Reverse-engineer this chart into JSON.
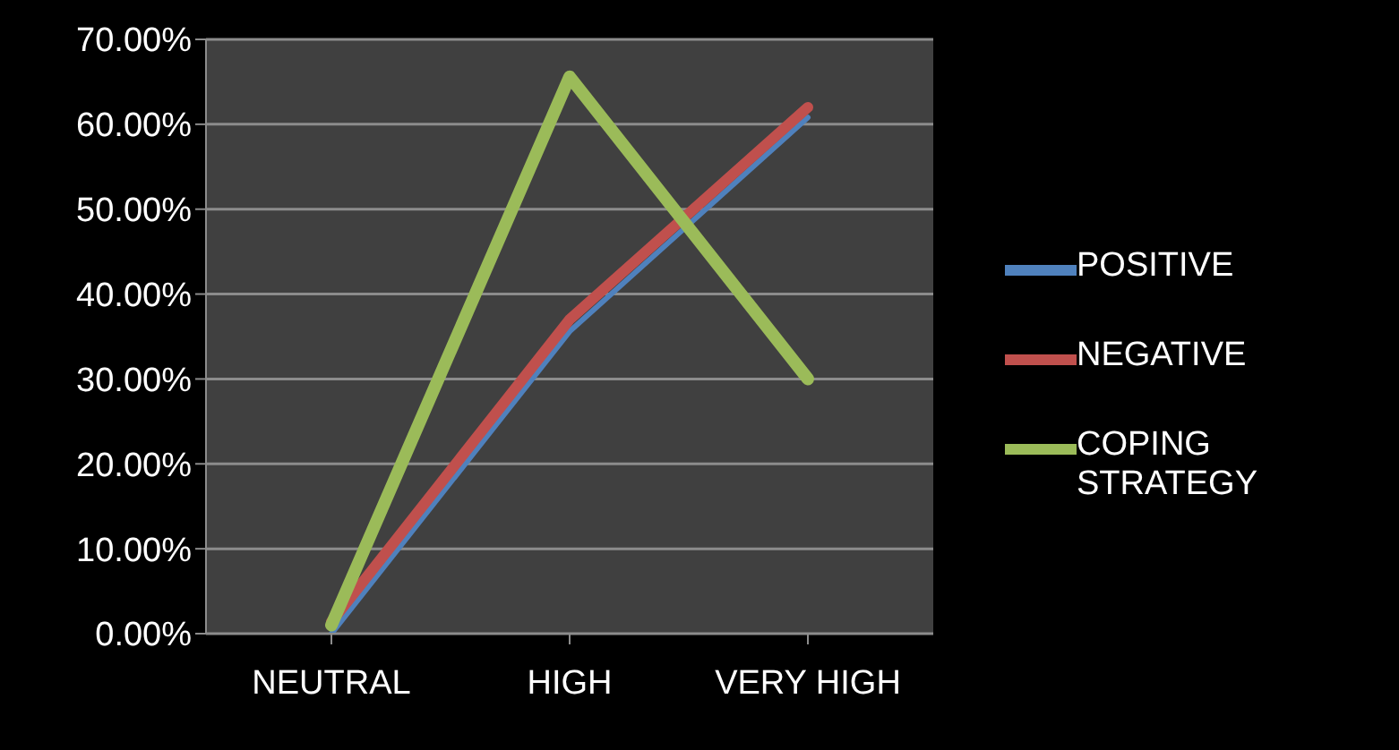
{
  "chart_data": {
    "type": "line",
    "categories": [
      "NEUTRAL",
      "HIGH",
      "VERY HIGH"
    ],
    "series": [
      {
        "name": "POSITIVE",
        "color": "#4f81bd",
        "values": [
          0,
          35.6,
          60.8
        ]
      },
      {
        "name": "NEGATIVE",
        "color": "#c0504d",
        "values": [
          1.4,
          37,
          62
        ]
      },
      {
        "name": "COPING STRATEGY",
        "color": "#9bbb59",
        "values": [
          1,
          65.6,
          30
        ]
      }
    ],
    "ylim": [
      0,
      70
    ],
    "yticks": [
      {
        "value": 0,
        "label": "0.00%"
      },
      {
        "value": 10,
        "label": "10.00%"
      },
      {
        "value": 20,
        "label": "20.00%"
      },
      {
        "value": 30,
        "label": "30.00%"
      },
      {
        "value": 40,
        "label": "40.00%"
      },
      {
        "value": 50,
        "label": "50.00%"
      },
      {
        "value": 60,
        "label": "60.00%"
      },
      {
        "value": 70,
        "label": "70.00%"
      }
    ],
    "grid": "y",
    "legend": "right",
    "marker": "none",
    "line_style": "solid"
  }
}
